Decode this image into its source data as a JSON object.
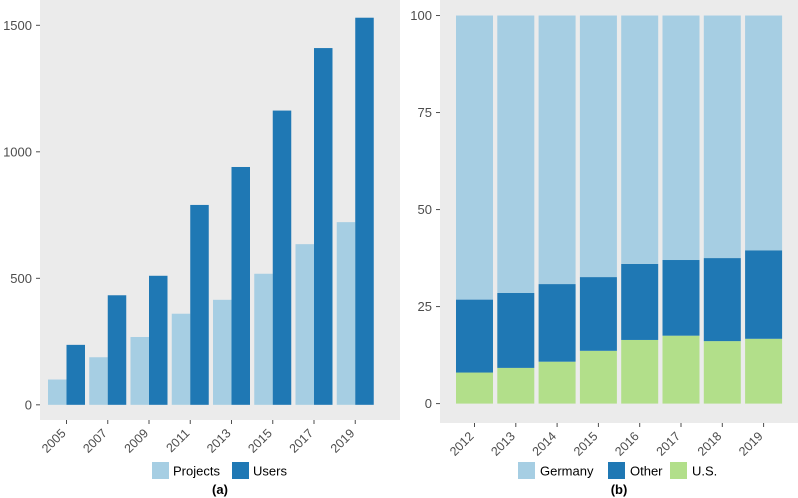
{
  "chart_data": [
    {
      "type": "bar",
      "label": "(a)",
      "categories": [
        "2005",
        "2007",
        "2009",
        "2011",
        "2013",
        "2015",
        "2017",
        "2019"
      ],
      "series": [
        {
          "name": "Projects",
          "color": "#a6cee3",
          "values": [
            100,
            188,
            268,
            360,
            415,
            518,
            635,
            722
          ]
        },
        {
          "name": "Users",
          "color": "#1f78b4",
          "values": [
            237,
            433,
            510,
            790,
            940,
            1163,
            1410,
            1530
          ]
        }
      ],
      "yticks": [
        "0",
        "500",
        "1000",
        "1500"
      ],
      "ylim": [
        -60,
        1600
      ],
      "grid": false,
      "legend_position": "bottom"
    },
    {
      "type": "bar",
      "stacked": true,
      "label": "(b)",
      "categories": [
        "2012",
        "2013",
        "2014",
        "2015",
        "2016",
        "2017",
        "2018",
        "2019"
      ],
      "series": [
        {
          "name": "Germany",
          "color": "#a6cee3",
          "values": [
            73.2,
            71.5,
            69.2,
            67.4,
            64.0,
            63.0,
            62.5,
            60.5
          ]
        },
        {
          "name": "Other",
          "color": "#1f78b4",
          "values": [
            18.8,
            19.3,
            20.0,
            19.0,
            19.6,
            19.5,
            21.4,
            22.8
          ]
        },
        {
          "name": "U.S.",
          "color": "#b2df8a",
          "values": [
            8.0,
            9.2,
            10.8,
            13.6,
            16.4,
            17.5,
            16.1,
            16.7
          ]
        }
      ],
      "yticks": [
        "0",
        "25",
        "50",
        "75",
        "100"
      ],
      "ylim": [
        -5,
        104
      ],
      "grid": false,
      "legend_position": "bottom"
    }
  ],
  "theme": {
    "panel_background": "#ebebeb",
    "tick_color": "#4d4d4d"
  }
}
